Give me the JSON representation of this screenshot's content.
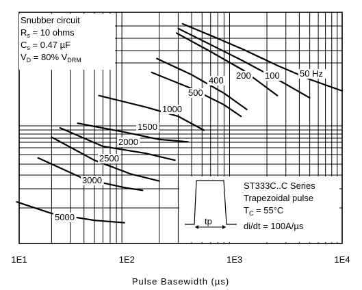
{
  "chart_data": {
    "type": "line",
    "xscale": "log",
    "xlim": [
      10,
      10000
    ],
    "xlabel": "Pulse Basewidth (µs)",
    "xticks": [
      {
        "value": 10,
        "label": "1E1"
      },
      {
        "value": 100,
        "label": "1E2"
      },
      {
        "value": 1000,
        "label": "1E3"
      },
      {
        "value": 10000,
        "label": "1E4"
      }
    ],
    "ylabel": "",
    "grid": true,
    "conditions": {
      "line1": "Snubber circuit",
      "rs_label": "R",
      "rs_sub": "s",
      "rs_value": " = 10 ohms",
      "cs_label": "C",
      "cs_sub": "s",
      "cs_value": " = 0.47 µF",
      "vd_label": "V",
      "vd_sub": "D",
      "vd_value": " = 80% V",
      "vd_sub2": "DRM"
    },
    "device_box": {
      "series_line": "ST333C..C Series",
      "pulse_line": "Trapezoidal pulse",
      "tc_label": "T",
      "tc_sub": "C",
      "tc_value": " = 55°C",
      "didt_line": "di/dt = 100A/µs",
      "tp_label": "tp"
    },
    "series": [
      {
        "name": "50 Hz",
        "x": [
          330,
          600,
          1200,
          2500,
          5000,
          10000
        ],
        "y": [
          0.95,
          0.9,
          0.84,
          0.77,
          0.71,
          0.66
        ]
      },
      {
        "name": "100",
        "x": [
          300,
          600,
          1200,
          2500,
          5000
        ],
        "y": [
          0.93,
          0.86,
          0.79,
          0.71,
          0.63
        ]
      },
      {
        "name": "200",
        "x": [
          290,
          600,
          1200,
          2500
        ],
        "y": [
          0.91,
          0.83,
          0.75,
          0.64
        ]
      },
      {
        "name": "400",
        "x": [
          190,
          400,
          800,
          1300
        ],
        "y": [
          0.8,
          0.73,
          0.65,
          0.58
        ]
      },
      {
        "name": "500",
        "x": [
          170,
          400,
          800,
          1150
        ],
        "y": [
          0.74,
          0.67,
          0.6,
          0.55
        ]
      },
      {
        "name": "1000",
        "x": [
          55,
          150,
          300,
          520
        ],
        "y": [
          0.64,
          0.59,
          0.55,
          0.49
        ]
      },
      {
        "name": "1500",
        "x": [
          35,
          100,
          200,
          370
        ],
        "y": [
          0.52,
          0.48,
          0.45,
          0.44
        ]
      },
      {
        "name": "2000",
        "x": [
          24,
          60,
          150,
          280
        ],
        "y": [
          0.5,
          0.42,
          0.39,
          0.36
        ]
      },
      {
        "name": "2500",
        "x": [
          20,
          50,
          110,
          200
        ],
        "y": [
          0.46,
          0.36,
          0.3,
          0.27
        ]
      },
      {
        "name": "3000",
        "x": [
          15,
          40,
          100,
          140
        ],
        "y": [
          0.37,
          0.28,
          0.24,
          0.23
        ]
      },
      {
        "name": "5000",
        "x": [
          9.5,
          20,
          50,
          95
        ],
        "y": [
          0.18,
          0.13,
          0.1,
          0.09
        ]
      }
    ]
  }
}
